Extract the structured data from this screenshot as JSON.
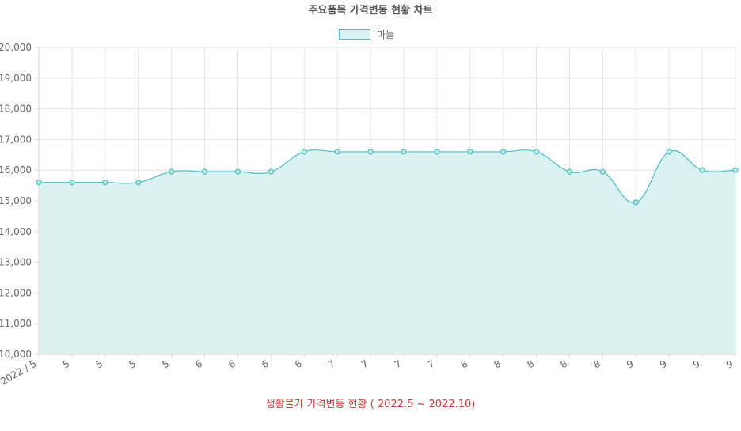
{
  "chart_data": {
    "type": "area",
    "title": "주요품목 가격변동 현황 차트",
    "footer": "생활물가 가격변동 현황 ( 2022.5 ~ 2022.10)",
    "categories": [
      "2022 / 5",
      "5",
      "5",
      "5",
      "5",
      "6",
      "6",
      "6",
      "6",
      "7",
      "7",
      "7",
      "7",
      "8",
      "8",
      "8",
      "8",
      "8",
      "9",
      "9",
      "9",
      "9"
    ],
    "series": [
      {
        "name": "마늘",
        "values": [
          15600,
          15600,
          15600,
          15600,
          15950,
          15950,
          15950,
          15950,
          16600,
          16600,
          16600,
          16600,
          16600,
          16600,
          16600,
          16600,
          15950,
          15950,
          14950,
          16600,
          16000,
          16000
        ]
      }
    ],
    "ylim": [
      10000,
      20000
    ],
    "yticks": [
      "10,000",
      "11,000",
      "12,000",
      "13,000",
      "14,000",
      "15,000",
      "16,000",
      "17,000",
      "18,000",
      "19,000",
      "20,000"
    ],
    "grid": true,
    "legend": "top-center",
    "colors": {
      "line": "#4bc0c0",
      "fill": "#d9f1f1",
      "grid": "#e5e5e5",
      "footer": "#e03131"
    }
  }
}
